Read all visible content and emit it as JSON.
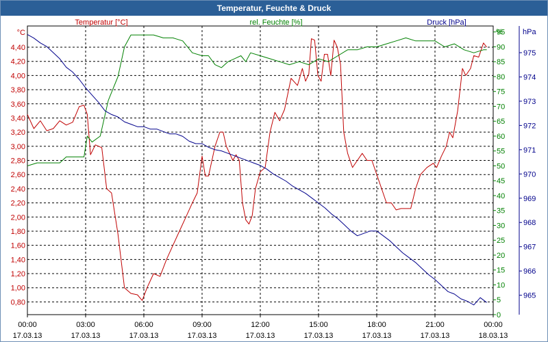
{
  "window": {
    "title": "Temperatur, Feuchte & Druck"
  },
  "colors": {
    "temperature": "#c00000",
    "humidity": "#008000",
    "pressure": "#00008b",
    "titlebar": "#2b5f97",
    "grid": "#000000"
  },
  "chart_data": {
    "type": "line",
    "title": "Temperatur, Feuchte & Druck",
    "grid": true,
    "x_labels": [
      {
        "time": "00:00",
        "date": "17.03.13"
      },
      {
        "time": "03:00",
        "date": "17.03.13"
      },
      {
        "time": "06:00",
        "date": "17.03.13"
      },
      {
        "time": "09:00",
        "date": "17.03.13"
      },
      {
        "time": "12:00",
        "date": "17.03.13"
      },
      {
        "time": "15:00",
        "date": "17.03.13"
      },
      {
        "time": "18:00",
        "date": "17.03.13"
      },
      {
        "time": "21:00",
        "date": "17.03.13"
      },
      {
        "time": "00:00",
        "date": "18.03.13"
      }
    ],
    "xlim": [
      "17.03.13 00:00",
      "18.03.13 00:00"
    ],
    "axes": {
      "temperature": {
        "label": "Temperatur [°C]",
        "unit": "°C",
        "ylim": [
          0.62,
          4.7
        ],
        "ticks": [
          "0,80",
          "1,00",
          "1,20",
          "1,40",
          "1,60",
          "1,80",
          "2,00",
          "2,20",
          "2,40",
          "2,60",
          "2,80",
          "3,00",
          "3,20",
          "3,40",
          "3,60",
          "3,80",
          "4,00",
          "4,20",
          "4,40"
        ]
      },
      "humidity": {
        "label": "rel. Feuchte [%]",
        "unit": "%",
        "ylim": [
          0,
          97
        ],
        "ticks": [
          "0",
          "5",
          "10",
          "15",
          "20",
          "25",
          "30",
          "35",
          "40",
          "45",
          "50",
          "55",
          "60",
          "65",
          "70",
          "75",
          "80",
          "85",
          "90",
          "95"
        ]
      },
      "pressure": {
        "label": "Druck [hPa]",
        "unit": "hPa",
        "ylim": [
          964.2,
          976.1
        ],
        "ticks": [
          "965",
          "966",
          "967",
          "968",
          "969",
          "970",
          "971",
          "972",
          "973",
          "974",
          "975"
        ]
      }
    },
    "series": [
      {
        "name": "Temperatur [°C]",
        "axis": "temperature",
        "points": [
          [
            "17.03.13 00:00",
            3.45
          ],
          [
            "17.03.13 00:20",
            3.25
          ],
          [
            "17.03.13 00:40",
            3.36
          ],
          [
            "17.03.13 01:00",
            3.22
          ],
          [
            "17.03.13 01:20",
            3.25
          ],
          [
            "17.03.13 01:40",
            3.36
          ],
          [
            "17.03.13 02:00",
            3.3
          ],
          [
            "17.03.13 02:20",
            3.34
          ],
          [
            "17.03.13 02:40",
            3.56
          ],
          [
            "17.03.13 02:55",
            3.58
          ],
          [
            "17.03.13 03:05",
            3.45
          ],
          [
            "17.03.13 03:15",
            2.88
          ],
          [
            "17.03.13 03:30",
            3.02
          ],
          [
            "17.03.13 03:50",
            2.98
          ],
          [
            "17.03.13 04:05",
            2.4
          ],
          [
            "17.03.13 04:20",
            2.34
          ],
          [
            "17.03.13 04:40",
            1.76
          ],
          [
            "17.03.13 05:00",
            1.0
          ],
          [
            "17.03.13 05:20",
            0.92
          ],
          [
            "17.03.13 05:40",
            0.9
          ],
          [
            "17.03.13 05:55",
            0.82
          ],
          [
            "17.03.13 06:10",
            1.0
          ],
          [
            "17.03.13 06:30",
            1.2
          ],
          [
            "17.03.13 06:50",
            1.16
          ],
          [
            "17.03.13 07:10",
            1.4
          ],
          [
            "17.03.13 07:30",
            1.6
          ],
          [
            "17.03.13 07:50",
            1.8
          ],
          [
            "17.03.13 08:10",
            2.0
          ],
          [
            "17.03.13 08:30",
            2.2
          ],
          [
            "17.03.13 08:45",
            2.34
          ],
          [
            "17.03.13 09:00",
            2.86
          ],
          [
            "17.03.13 09:10",
            2.58
          ],
          [
            "17.03.13 09:20",
            2.58
          ],
          [
            "17.03.13 09:40",
            3.0
          ],
          [
            "17.03.13 09:55",
            3.2
          ],
          [
            "17.03.13 10:05",
            3.2
          ],
          [
            "17.03.13 10:15",
            3.0
          ],
          [
            "17.03.13 10:35",
            2.8
          ],
          [
            "17.03.13 10:45",
            2.88
          ],
          [
            "17.03.13 10:55",
            2.8
          ],
          [
            "17.03.13 11:05",
            2.2
          ],
          [
            "17.03.13 11:15",
            1.96
          ],
          [
            "17.03.13 11:25",
            1.9
          ],
          [
            "17.03.13 11:35",
            2.02
          ],
          [
            "17.03.13 11:45",
            2.4
          ],
          [
            "17.03.13 12:00",
            2.64
          ],
          [
            "17.03.13 12:15",
            2.7
          ],
          [
            "17.03.13 12:30",
            3.2
          ],
          [
            "17.03.13 12:45",
            3.48
          ],
          [
            "17.03.13 13:00",
            3.36
          ],
          [
            "17.03.13 13:15",
            3.52
          ],
          [
            "17.03.13 13:35",
            3.96
          ],
          [
            "17.03.13 13:55",
            3.86
          ],
          [
            "17.03.13 14:10",
            4.1
          ],
          [
            "17.03.13 14:20",
            3.92
          ],
          [
            "17.03.13 14:30",
            4.02
          ],
          [
            "17.03.13 14:38",
            4.52
          ],
          [
            "17.03.13 14:48",
            4.5
          ],
          [
            "17.03.13 14:58",
            4.0
          ],
          [
            "17.03.13 15:08",
            3.92
          ],
          [
            "17.03.13 15:18",
            4.3
          ],
          [
            "17.03.13 15:28",
            4.3
          ],
          [
            "17.03.13 15:38",
            4.0
          ],
          [
            "17.03.13 15:48",
            4.5
          ],
          [
            "17.03.13 15:58",
            4.4
          ],
          [
            "17.03.13 16:08",
            4.16
          ],
          [
            "17.03.13 16:18",
            3.2
          ],
          [
            "17.03.13 16:30",
            2.9
          ],
          [
            "17.03.13 16:45",
            2.7
          ],
          [
            "17.03.13 17:00",
            2.8
          ],
          [
            "17.03.13 17:15",
            2.9
          ],
          [
            "17.03.13 17:30",
            2.8
          ],
          [
            "17.03.13 17:45",
            2.8
          ],
          [
            "17.03.13 18:00",
            2.6
          ],
          [
            "17.03.13 18:15",
            2.4
          ],
          [
            "17.03.13 18:30",
            2.2
          ],
          [
            "17.03.13 18:45",
            2.2
          ],
          [
            "17.03.13 19:00",
            2.1
          ],
          [
            "17.03.13 19:15",
            2.12
          ],
          [
            "17.03.13 19:30",
            2.12
          ],
          [
            "17.03.13 19:45",
            2.12
          ],
          [
            "17.03.13 20:00",
            2.4
          ],
          [
            "17.03.13 20:15",
            2.6
          ],
          [
            "17.03.13 20:35",
            2.7
          ],
          [
            "17.03.13 20:55",
            2.76
          ],
          [
            "17.03.13 21:05",
            2.7
          ],
          [
            "17.03.13 21:20",
            2.86
          ],
          [
            "17.03.13 21:35",
            3.0
          ],
          [
            "17.03.13 21:45",
            3.2
          ],
          [
            "17.03.13 21:55",
            3.12
          ],
          [
            "17.03.13 22:10",
            3.5
          ],
          [
            "17.03.13 22:25",
            4.1
          ],
          [
            "17.03.13 22:35",
            4.0
          ],
          [
            "17.03.13 22:50",
            4.1
          ],
          [
            "17.03.13 23:00",
            4.28
          ],
          [
            "17.03.13 23:15",
            4.26
          ],
          [
            "17.03.13 23:30",
            4.46
          ],
          [
            "17.03.13 23:40",
            4.4
          ]
        ]
      },
      {
        "name": "rel. Feuchte [%]",
        "axis": "humidity",
        "points": [
          [
            "17.03.13 00:00",
            50
          ],
          [
            "17.03.13 00:30",
            51
          ],
          [
            "17.03.13 01:00",
            51
          ],
          [
            "17.03.13 01:40",
            51
          ],
          [
            "17.03.13 02:00",
            53
          ],
          [
            "17.03.13 02:30",
            53
          ],
          [
            "17.03.13 02:55",
            53
          ],
          [
            "17.03.13 03:05",
            60
          ],
          [
            "17.03.13 03:20",
            58
          ],
          [
            "17.03.13 03:45",
            60
          ],
          [
            "17.03.13 04:10",
            72
          ],
          [
            "17.03.13 04:40",
            80
          ],
          [
            "17.03.13 05:00",
            90
          ],
          [
            "17.03.13 05:20",
            94
          ],
          [
            "17.03.13 05:40",
            94
          ],
          [
            "17.03.13 06:00",
            94
          ],
          [
            "17.03.13 06:30",
            94
          ],
          [
            "17.03.13 07:00",
            93
          ],
          [
            "17.03.13 07:30",
            93
          ],
          [
            "17.03.13 08:00",
            92
          ],
          [
            "17.03.13 08:30",
            88
          ],
          [
            "17.03.13 09:00",
            87
          ],
          [
            "17.03.13 09:20",
            87
          ],
          [
            "17.03.13 09:40",
            84
          ],
          [
            "17.03.13 10:00",
            83
          ],
          [
            "17.03.13 10:20",
            85
          ],
          [
            "17.03.13 10:40",
            86
          ],
          [
            "17.03.13 11:00",
            87
          ],
          [
            "17.03.13 11:15",
            85
          ],
          [
            "17.03.13 11:30",
            88
          ],
          [
            "17.03.13 12:00",
            87
          ],
          [
            "17.03.13 12:30",
            86
          ],
          [
            "17.03.13 13:00",
            85
          ],
          [
            "17.03.13 13:30",
            84
          ],
          [
            "17.03.13 14:00",
            85
          ],
          [
            "17.03.13 14:30",
            84
          ],
          [
            "17.03.13 15:00",
            86
          ],
          [
            "17.03.13 15:30",
            85
          ],
          [
            "17.03.13 16:00",
            87
          ],
          [
            "17.03.13 16:30",
            89
          ],
          [
            "17.03.13 17:00",
            89
          ],
          [
            "17.03.13 17:30",
            90
          ],
          [
            "17.03.13 18:00",
            90
          ],
          [
            "17.03.13 18:30",
            91
          ],
          [
            "17.03.13 19:00",
            92
          ],
          [
            "17.03.13 19:30",
            93
          ],
          [
            "17.03.13 20:00",
            92
          ],
          [
            "17.03.13 20:30",
            92
          ],
          [
            "17.03.13 21:00",
            92
          ],
          [
            "17.03.13 21:30",
            90
          ],
          [
            "17.03.13 22:00",
            91
          ],
          [
            "17.03.13 22:30",
            89
          ],
          [
            "17.03.13 23:00",
            88
          ],
          [
            "17.03.13 23:30",
            89
          ],
          [
            "17.03.13 23:40",
            89
          ]
        ]
      },
      {
        "name": "Druck [hPa]",
        "axis": "pressure",
        "points": [
          [
            "17.03.13 00:00",
            975.75
          ],
          [
            "17.03.13 00:20",
            975.6
          ],
          [
            "17.03.13 00:40",
            975.4
          ],
          [
            "17.03.13 01:00",
            975.25
          ],
          [
            "17.03.13 01:20",
            975.0
          ],
          [
            "17.03.13 01:40",
            974.75
          ],
          [
            "17.03.13 02:00",
            974.4
          ],
          [
            "17.03.13 02:20",
            974.2
          ],
          [
            "17.03.13 02:40",
            973.9
          ],
          [
            "17.03.13 03:00",
            973.55
          ],
          [
            "17.03.13 03:20",
            973.25
          ],
          [
            "17.03.13 03:40",
            972.95
          ],
          [
            "17.03.13 04:00",
            972.6
          ],
          [
            "17.03.13 04:20",
            972.45
          ],
          [
            "17.03.13 04:40",
            972.35
          ],
          [
            "17.03.13 05:00",
            972.15
          ],
          [
            "17.03.13 05:20",
            972.05
          ],
          [
            "17.03.13 05:40",
            971.95
          ],
          [
            "17.03.13 06:00",
            971.95
          ],
          [
            "17.03.13 06:20",
            971.85
          ],
          [
            "17.03.13 06:40",
            971.85
          ],
          [
            "17.03.13 07:00",
            971.75
          ],
          [
            "17.03.13 07:20",
            971.65
          ],
          [
            "17.03.13 07:40",
            971.65
          ],
          [
            "17.03.13 08:00",
            971.55
          ],
          [
            "17.03.13 08:20",
            971.35
          ],
          [
            "17.03.13 08:40",
            971.25
          ],
          [
            "17.03.13 09:00",
            971.25
          ],
          [
            "17.03.13 09:20",
            971.1
          ],
          [
            "17.03.13 09:40",
            971.0
          ],
          [
            "17.03.13 10:00",
            970.95
          ],
          [
            "17.03.13 10:20",
            970.85
          ],
          [
            "17.03.13 10:40",
            970.75
          ],
          [
            "17.03.13 11:00",
            970.65
          ],
          [
            "17.03.13 11:20",
            970.55
          ],
          [
            "17.03.13 11:40",
            970.45
          ],
          [
            "17.03.13 12:00",
            970.35
          ],
          [
            "17.03.13 12:20",
            970.2
          ],
          [
            "17.03.13 12:40",
            970.0
          ],
          [
            "17.03.13 13:00",
            969.85
          ],
          [
            "17.03.13 13:20",
            969.7
          ],
          [
            "17.03.13 13:40",
            969.5
          ],
          [
            "17.03.13 14:00",
            969.35
          ],
          [
            "17.03.13 14:20",
            969.2
          ],
          [
            "17.03.13 14:40",
            969.0
          ],
          [
            "17.03.13 15:00",
            968.8
          ],
          [
            "17.03.13 15:20",
            968.6
          ],
          [
            "17.03.13 15:40",
            968.35
          ],
          [
            "17.03.13 16:00",
            968.15
          ],
          [
            "17.03.13 16:20",
            967.9
          ],
          [
            "17.03.13 16:40",
            967.65
          ],
          [
            "17.03.13 17:00",
            967.45
          ],
          [
            "17.03.13 17:20",
            967.55
          ],
          [
            "17.03.13 17:40",
            967.65
          ],
          [
            "17.03.13 18:00",
            967.65
          ],
          [
            "17.03.13 18:20",
            967.45
          ],
          [
            "17.03.13 18:40",
            967.25
          ],
          [
            "17.03.13 19:00",
            967.0
          ],
          [
            "17.03.13 19:20",
            966.75
          ],
          [
            "17.03.13 19:40",
            966.55
          ],
          [
            "17.03.13 20:00",
            966.35
          ],
          [
            "17.03.13 20:20",
            966.1
          ],
          [
            "17.03.13 20:40",
            965.85
          ],
          [
            "17.03.13 21:00",
            965.65
          ],
          [
            "17.03.13 21:20",
            965.4
          ],
          [
            "17.03.13 21:40",
            965.15
          ],
          [
            "17.03.13 22:00",
            965.05
          ],
          [
            "17.03.13 22:20",
            964.85
          ],
          [
            "17.03.13 22:40",
            964.75
          ],
          [
            "17.03.13 23:00",
            964.6
          ],
          [
            "17.03.13 23:20",
            964.9
          ],
          [
            "17.03.13 23:40",
            964.7
          ]
        ]
      }
    ]
  }
}
